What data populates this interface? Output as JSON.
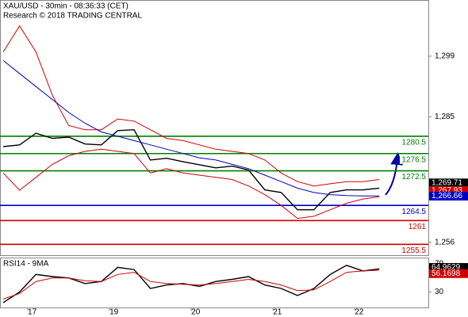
{
  "chart_data": [
    {
      "type": "line",
      "title": "XAU/USD - 30min - 08:36:33 (CET)",
      "subtitle": "Research © 2018 TRADING CENTRAL",
      "x": [
        0.7,
        0.9,
        1.1,
        1.3,
        1.5,
        1.7,
        1.9,
        2.1,
        2.3,
        2.5,
        2.7,
        2.9,
        3.1,
        3.3,
        3.5,
        3.7,
        3.9,
        4.1,
        4.3,
        4.5,
        4.7,
        4.9,
        5.1,
        5.3
      ],
      "series": [
        {
          "name": "price",
          "color": "#000000",
          "values": [
            1278.1,
            1278.5,
            1281.2,
            1280,
            1280.3,
            1278.7,
            1278.5,
            1281.8,
            1282,
            1275,
            1275.4,
            1274.6,
            1273.9,
            1273.2,
            1273.6,
            1272.7,
            1268.1,
            1267.5,
            1263.5,
            1263.5,
            1267.5,
            1268.1,
            1268.1,
            1268.5
          ]
        },
        {
          "name": "upper band",
          "color": "#d00000",
          "values": [
            1300,
            1306,
            1300,
            1290,
            1283,
            1282,
            1282,
            1284.5,
            1284,
            1282,
            1280,
            1279.5,
            1278.5,
            1277.5,
            1277,
            1276.5,
            1275,
            1272,
            1270,
            1269,
            1269.5,
            1270,
            1270,
            1270.5
          ]
        },
        {
          "name": "lower band",
          "color": "#d00000",
          "values": [
            1272,
            1268,
            1271,
            1274,
            1276,
            1277,
            1277.5,
            1277,
            1276.5,
            1272,
            1273,
            1272,
            1271.5,
            1271,
            1270.5,
            1269,
            1267,
            1264.5,
            1261.5,
            1262,
            1263.5,
            1265,
            1266,
            1266.5
          ]
        },
        {
          "name": "moving average",
          "color": "#0000c0",
          "values": [
            1298,
            1295,
            1292,
            1289,
            1286,
            1283.5,
            1281.5,
            1280.5,
            1279.5,
            1278.5,
            1277.5,
            1276.5,
            1275.5,
            1275,
            1274,
            1273,
            1271.5,
            1270,
            1268.5,
            1267.5,
            1267,
            1266.8,
            1266.7,
            1266.7
          ]
        }
      ],
      "levels": [
        {
          "value": 1280.5,
          "color": "#008000"
        },
        {
          "value": 1276.5,
          "color": "#008000"
        },
        {
          "value": 1272.5,
          "color": "#008000"
        },
        {
          "value": 1264.5,
          "color": "#0000c0"
        },
        {
          "value": 1261,
          "color": "#d00000"
        },
        {
          "value": 1255.5,
          "color": "#d00000"
        }
      ],
      "tags": [
        {
          "value": 1269.71,
          "label": "1,269.71",
          "color": "#000000"
        },
        {
          "value": 1267.93,
          "label": "1,267.93",
          "color": "#d00000"
        },
        {
          "value": 1266.66,
          "label": "1,266.66",
          "color": "#0000c0"
        }
      ],
      "xlim": [
        0.66,
        5.9
      ],
      "ylim": [
        1253,
        1312
      ],
      "yticks": [
        {
          "value": 1299,
          "label": "1,299"
        },
        {
          "value": 1285,
          "label": "1,285"
        },
        {
          "value": 1256,
          "label": "1,256"
        }
      ]
    },
    {
      "type": "line",
      "title": "RSI14 - 9MA",
      "x": [
        0.7,
        0.9,
        1.1,
        1.3,
        1.5,
        1.7,
        1.9,
        2.1,
        2.3,
        2.5,
        2.7,
        2.9,
        3.1,
        3.3,
        3.5,
        3.7,
        3.9,
        4.1,
        4.3,
        4.5,
        4.7,
        4.9,
        5.1,
        5.3
      ],
      "series": [
        {
          "name": "RSI14",
          "color": "#000000",
          "values": [
            15,
            30,
            55,
            52,
            50,
            42,
            45,
            65,
            62,
            35,
            40,
            42,
            38,
            45,
            48,
            52,
            40,
            35,
            25,
            35,
            55,
            68,
            60,
            63
          ]
        },
        {
          "name": "9MA",
          "color": "#d00000",
          "values": [
            20,
            28,
            45,
            50,
            50,
            46,
            45,
            55,
            58,
            45,
            42,
            41,
            40,
            42,
            45,
            48,
            45,
            40,
            32,
            33,
            45,
            58,
            60,
            61
          ]
        }
      ],
      "tags": [
        {
          "value": 64.9629,
          "color": "#000000"
        },
        {
          "value": 56.1698,
          "color": "#d00000"
        }
      ],
      "xlim": [
        0.66,
        5.9
      ],
      "ylim": [
        8,
        79
      ],
      "yticks": [
        70,
        30
      ],
      "xticks": [
        {
          "value": 1,
          "label": "17"
        },
        {
          "value": 2,
          "label": "19"
        },
        {
          "value": 3,
          "label": "20"
        },
        {
          "value": 4,
          "label": "21"
        },
        {
          "value": 5,
          "label": "22"
        }
      ]
    }
  ]
}
